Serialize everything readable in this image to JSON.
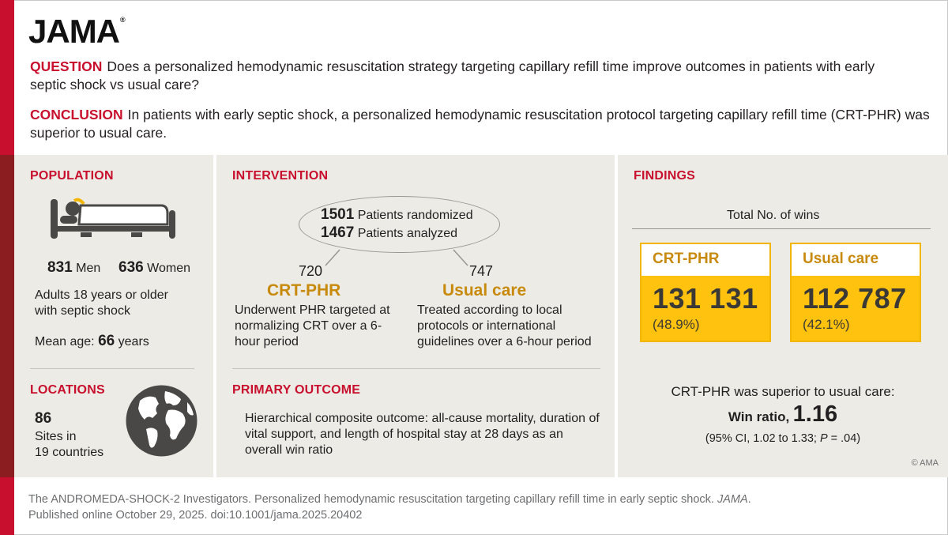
{
  "logo": "JAMA",
  "question": {
    "label": "QUESTION",
    "text": "Does a personalized hemodynamic resuscitation strategy targeting capillary refill time improve outcomes in patients with early septic shock vs usual care?"
  },
  "conclusion": {
    "label": "CONCLUSION",
    "text": "In patients with early septic shock, a personalized hemodynamic resuscitation protocol targeting capillary refill time (CRT-PHR) was superior to usual care."
  },
  "population": {
    "heading": "POPULATION",
    "icon": "hospital-bed-icon",
    "men_count": "831",
    "men_label": "Men",
    "women_count": "636",
    "women_label": "Women",
    "description": "Adults 18 years or older with septic shock",
    "age_label": "Mean age:",
    "age_value": "66",
    "age_unit": "years"
  },
  "locations": {
    "heading": "LOCATIONS",
    "icon": "globe-icon",
    "sites_count": "86",
    "sites_label": "Sites in",
    "countries": "19 countries"
  },
  "intervention": {
    "heading": "INTERVENTION",
    "randomized_count": "1501",
    "randomized_label": "Patients randomized",
    "analyzed_count": "1467",
    "analyzed_label": "Patients analyzed",
    "arm1": {
      "count": "720",
      "name": "CRT-PHR",
      "description": "Underwent PHR targeted at normalizing CRT over a 6-hour period"
    },
    "arm2": {
      "count": "747",
      "name": "Usual care",
      "description": "Treated according to local protocols or international guidelines over a 6-hour period"
    }
  },
  "primary_outcome": {
    "heading": "PRIMARY OUTCOME",
    "text": "Hierarchical composite outcome: all-cause mortality, duration of vital support, and length of hospital stay at 28 days as an overall win ratio"
  },
  "findings": {
    "heading": "FINDINGS",
    "wins_title": "Total No. of wins",
    "box1": {
      "label": "CRT-PHR",
      "value": "131 131",
      "pct": "(48.9%)"
    },
    "box2": {
      "label": "Usual care",
      "value": "112 787",
      "pct": "(42.1%)"
    },
    "superior_text": "CRT-PHR was superior to usual care:",
    "win_ratio_label": "Win ratio,",
    "win_ratio_value": "1.16",
    "ci_prefix": "(95% CI, 1.02 to 1.33;",
    "ci_p": "P",
    "ci_suffix": "= .04)"
  },
  "copyright": "© AMA",
  "citation": {
    "line1_text": "The ANDROMEDA-SHOCK-2 Investigators. Personalized hemodynamic resuscitation targeting capillary refill time in early septic shock.",
    "line1_journal": "JAMA",
    "line1_end": ".",
    "line2": "Published online October 29, 2025. doi:10.1001/jama.2025.20402"
  },
  "colors": {
    "red": "#c8102e",
    "dark_red": "#8b1c1f",
    "gold": "#c88a0d",
    "yellow": "#ffc20e",
    "panel_bg": "#ecebe5"
  }
}
